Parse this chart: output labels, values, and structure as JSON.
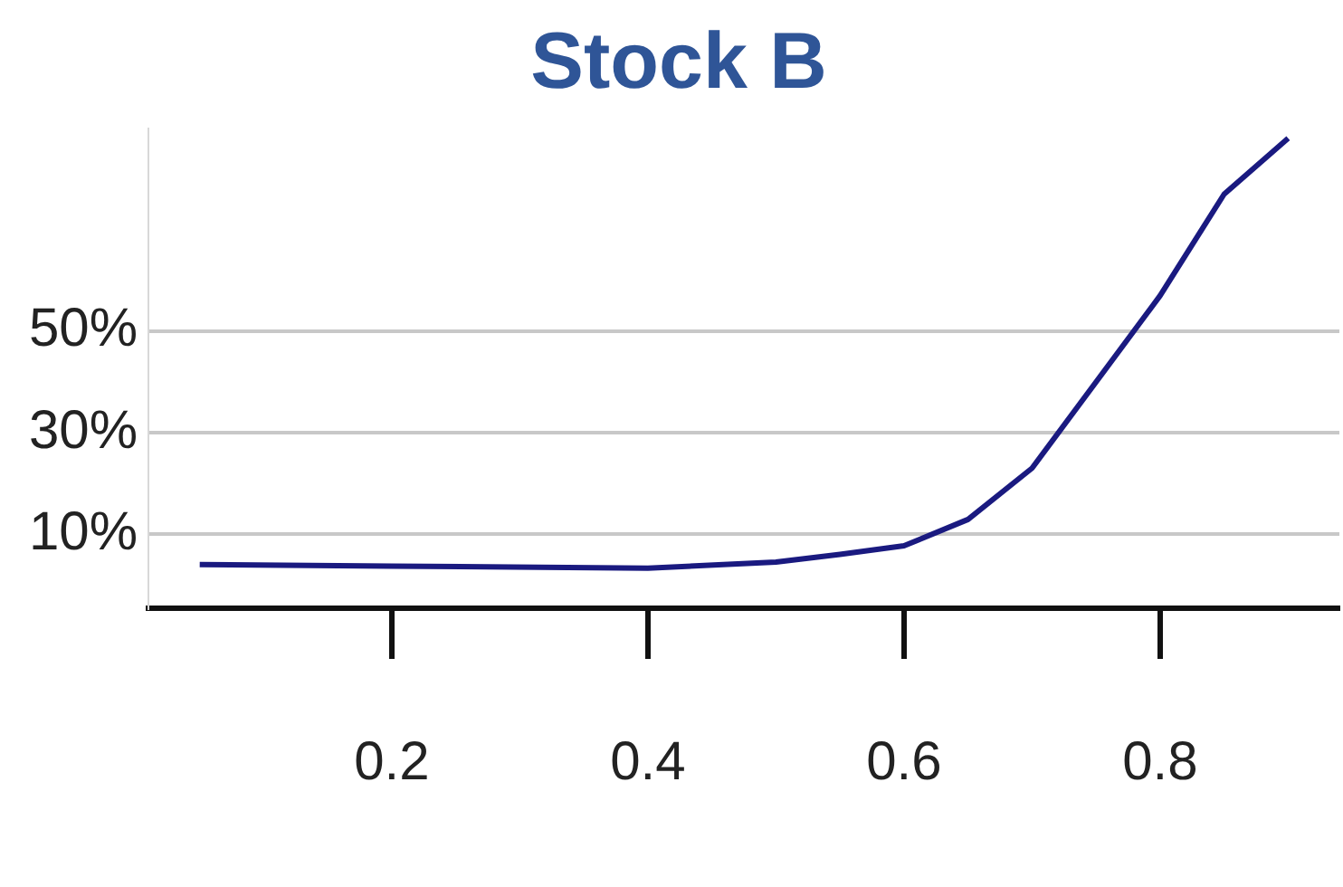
{
  "chart_data": {
    "type": "line",
    "title": "Stock B",
    "x": [
      0.05,
      0.2,
      0.4,
      0.5,
      0.55,
      0.6,
      0.65,
      0.7,
      0.75,
      0.8,
      0.85,
      0.9
    ],
    "series": [
      {
        "color": "#1a1a80",
        "values": [
          4,
          3.7,
          3.3,
          4.5,
          6,
          7.7,
          12.9,
          23,
          40,
          57,
          77,
          88
        ]
      }
    ],
    "xlim": [
      0.01,
      0.94
    ],
    "ylim": [
      -4.6,
      90
    ],
    "xticks": [
      0.2,
      0.4,
      0.6,
      0.8
    ],
    "yticks": [
      {
        "value": 10,
        "label": "10%"
      },
      {
        "value": 30,
        "label": "30%"
      },
      {
        "value": 50,
        "label": "50%"
      }
    ],
    "grid": "y",
    "marker": "none",
    "line_style": "solid"
  }
}
